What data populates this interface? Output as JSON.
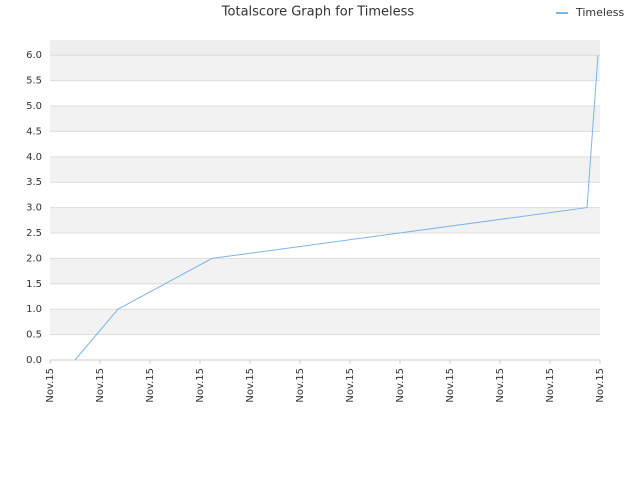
{
  "chart_data": {
    "type": "line",
    "title": "Totalscore Graph for Timeless",
    "x": [
      0.5,
      1.36,
      3.24,
      10.74,
      10.96
    ],
    "series": [
      {
        "name": "Timeless",
        "color": "#7cb5ec",
        "values": [
          0,
          1,
          2,
          3,
          6
        ]
      }
    ],
    "xlim": [
      0,
      11
    ],
    "xticks": [
      {
        "value": 0,
        "label": "Nov.15"
      },
      {
        "value": 1,
        "label": "Nov.15"
      },
      {
        "value": 2,
        "label": "Nov.15"
      },
      {
        "value": 3,
        "label": "Nov.15"
      },
      {
        "value": 4,
        "label": "Nov.15"
      },
      {
        "value": 5,
        "label": "Nov.15"
      },
      {
        "value": 6,
        "label": "Nov.15"
      },
      {
        "value": 7,
        "label": "Nov.15"
      },
      {
        "value": 8,
        "label": "Nov.15"
      },
      {
        "value": 9,
        "label": "Nov.15"
      },
      {
        "value": 10,
        "label": "Nov.15"
      },
      {
        "value": 11,
        "label": "Nov.15"
      }
    ],
    "ylim": [
      0,
      6.3
    ],
    "yticks": [
      {
        "value": 0,
        "label": "0.0"
      },
      {
        "value": 0.5,
        "label": "0.5"
      },
      {
        "value": 1,
        "label": "1.0"
      },
      {
        "value": 1.5,
        "label": "1.5"
      },
      {
        "value": 2,
        "label": "2.0"
      },
      {
        "value": 2.5,
        "label": "2.5"
      },
      {
        "value": 3,
        "label": "3.0"
      },
      {
        "value": 3.5,
        "label": "3.5"
      },
      {
        "value": 4,
        "label": "4.0"
      },
      {
        "value": 4.5,
        "label": "4.5"
      },
      {
        "value": 5,
        "label": "5.0"
      },
      {
        "value": 5.5,
        "label": "5.5"
      },
      {
        "value": 6,
        "label": "6.0"
      }
    ],
    "grid": true,
    "legend": "top-right"
  }
}
